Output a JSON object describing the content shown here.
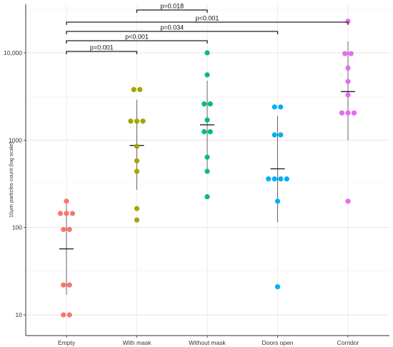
{
  "chart_data": {
    "type": "scatter",
    "title": "",
    "xlabel": "",
    "ylabel": "10μm particles count (log scale)",
    "yscale": "log",
    "ylim": [
      7.5,
      30000
    ],
    "yticks": [
      10,
      100,
      1000,
      10000
    ],
    "ytick_labels": [
      "10",
      "100",
      "1000",
      "10,000"
    ],
    "grid": true,
    "legend": "none",
    "categories": [
      "Empty",
      "With mask",
      "Without mask",
      "Doors open",
      "Corridor"
    ],
    "colors": [
      "#f8766d",
      "#a3a500",
      "#00bf7d",
      "#00b0f6",
      "#e76bf3"
    ],
    "series": [
      {
        "values": [
          200,
          145,
          145,
          145,
          95,
          95,
          22,
          22,
          10,
          10
        ],
        "mean": 57,
        "lower": 17,
        "upper": 185
      },
      {
        "values": [
          3800,
          3800,
          1650,
          1650,
          1650,
          850,
          580,
          440,
          165,
          122
        ],
        "mean": 870,
        "lower": 270,
        "upper": 2900
      },
      {
        "values": [
          10000,
          5600,
          2600,
          2600,
          1700,
          1250,
          1250,
          640,
          440,
          225
        ],
        "mean": 1500,
        "lower": 450,
        "upper": 4800
      },
      {
        "values": [
          2400,
          2400,
          1150,
          1150,
          360,
          360,
          360,
          360,
          200,
          21
        ],
        "mean": 470,
        "lower": 115,
        "upper": 1900
      },
      {
        "values": [
          23000,
          9800,
          9800,
          6700,
          4700,
          3300,
          2050,
          2050,
          2050,
          200
        ],
        "mean": 3600,
        "lower": 1000,
        "upper": 13500
      }
    ],
    "comparisons": [
      {
        "from": 1,
        "to": 2,
        "label": "p=0.018"
      },
      {
        "from": 0,
        "to": 4,
        "label": "p<0.001"
      },
      {
        "from": 0,
        "to": 3,
        "label": "p=0.034"
      },
      {
        "from": 0,
        "to": 2,
        "label": "p<0.001"
      },
      {
        "from": 0,
        "to": 1,
        "label": "p=0.001"
      }
    ]
  }
}
